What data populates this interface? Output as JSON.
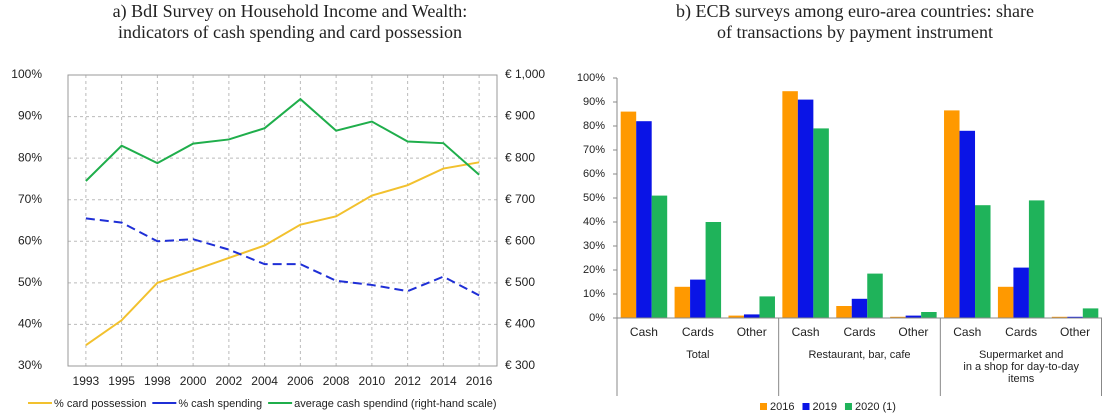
{
  "chart_data": [
    {
      "type": "line",
      "title": [
        "a)  BdI Survey on Household Income and Wealth:",
        "indicators of cash spending and card possession"
      ],
      "categories": [
        "1993",
        "1995",
        "1998",
        "2000",
        "2002",
        "2004",
        "2006",
        "2008",
        "2010",
        "2012",
        "2014",
        "2016"
      ],
      "series": [
        {
          "name": "% card possession",
          "color": "#f2c12e",
          "values": [
            35,
            41,
            50,
            53,
            56,
            59,
            64,
            66,
            71,
            73.5,
            77.5,
            79
          ]
        },
        {
          "name": "%  cash spending",
          "color": "#1f2fd6",
          "dashed": true,
          "values": [
            65.5,
            64.5,
            60,
            60.5,
            58,
            54.5,
            54.5,
            50.5,
            49.5,
            48,
            51.5,
            47
          ]
        },
        {
          "name": "average cash spendind (right-hand scale)",
          "color": "#1fae4b",
          "axis": "y2",
          "values": [
            745,
            830,
            788,
            835,
            845,
            872,
            942,
            866,
            888,
            840,
            836,
            760
          ]
        }
      ],
      "ylim": [
        30,
        100
      ],
      "yticks": [
        {
          "value": 30,
          "label": "30%"
        },
        {
          "value": 40,
          "label": "40%"
        },
        {
          "value": 50,
          "label": "50%"
        },
        {
          "value": 60,
          "label": "60%"
        },
        {
          "value": 70,
          "label": "70%"
        },
        {
          "value": 80,
          "label": "80%"
        },
        {
          "value": 90,
          "label": "90%"
        },
        {
          "value": 100,
          "label": "100%"
        }
      ],
      "y2lim": [
        300,
        1000
      ],
      "y2ticks": [
        {
          "value": 300,
          "label": "€ 300"
        },
        {
          "value": 400,
          "label": "€ 400"
        },
        {
          "value": 500,
          "label": "€ 500"
        },
        {
          "value": 600,
          "label": "€ 600"
        },
        {
          "value": 700,
          "label": "€ 700"
        },
        {
          "value": 800,
          "label": "€ 800"
        },
        {
          "value": 900,
          "label": "€ 900"
        },
        {
          "value": 1000,
          "label": "€ 1,000"
        }
      ],
      "grid": true
    },
    {
      "type": "bar",
      "title": [
        "b) ECB surveys among euro-area countries: share",
        "of transactions by payment instrument"
      ],
      "categories": [
        "Cash",
        "Cards",
        "Other",
        "Cash",
        "Cards",
        "Other",
        "Cash",
        "Cards",
        "Other"
      ],
      "groups": [
        [
          "Total"
        ],
        [
          "Restaurant, bar, cafe"
        ],
        [
          "Supermarket and",
          "in a shop for day-to-day",
          "items"
        ]
      ],
      "series": [
        {
          "name": "2016",
          "color": "#ff9900",
          "values": [
            86,
            13,
            1,
            94.5,
            5,
            0.5,
            86.5,
            13,
            0.5
          ]
        },
        {
          "name": "2019",
          "color": "#0a14e6",
          "values": [
            82,
            16,
            1.5,
            91,
            8,
            1,
            78,
            21,
            0.5
          ]
        },
        {
          "name": "2020 (1)",
          "color": "#1fb35a",
          "values": [
            51,
            40,
            9,
            79,
            18.5,
            2.5,
            47,
            49,
            4
          ]
        }
      ],
      "ylim": [
        0,
        100
      ],
      "yticks": [
        {
          "value": 0,
          "label": "0%"
        },
        {
          "value": 10,
          "label": "10%"
        },
        {
          "value": 20,
          "label": "20%"
        },
        {
          "value": 30,
          "label": "30%"
        },
        {
          "value": 40,
          "label": "40%"
        },
        {
          "value": 50,
          "label": "50%"
        },
        {
          "value": 60,
          "label": "60%"
        },
        {
          "value": 70,
          "label": "70%"
        },
        {
          "value": 80,
          "label": "80%"
        },
        {
          "value": 90,
          "label": "90%"
        },
        {
          "value": 100,
          "label": "100%"
        }
      ],
      "grid": false
    }
  ]
}
